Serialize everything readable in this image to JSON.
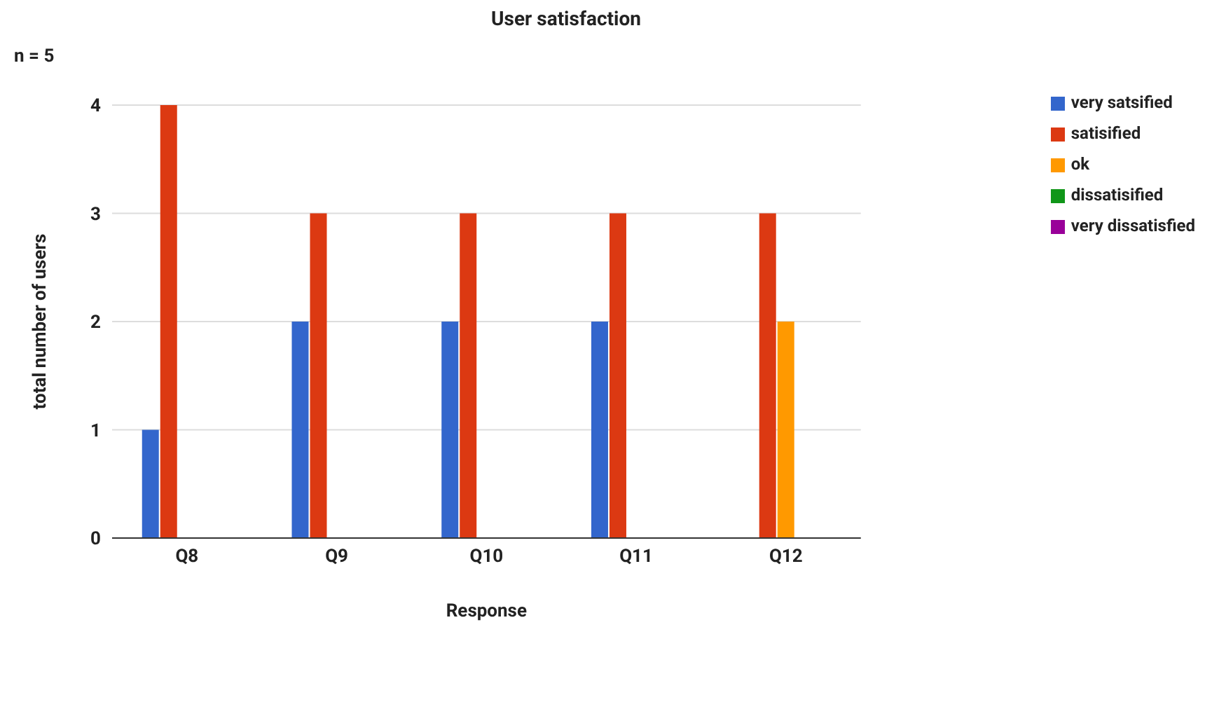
{
  "chart_data": {
    "type": "bar",
    "title": "User satisfaction",
    "xlabel": "Response",
    "ylabel": "total number of users",
    "annotations": [
      "n = 5"
    ],
    "categories": [
      "Q8",
      "Q9",
      "Q10",
      "Q11",
      "Q12"
    ],
    "series": [
      {
        "name": "very satsified",
        "color": "#3366cc",
        "values": [
          1,
          2,
          2,
          2,
          0
        ]
      },
      {
        "name": "satisified",
        "color": "#dc3912",
        "values": [
          4,
          3,
          3,
          3,
          3
        ]
      },
      {
        "name": "ok",
        "color": "#ff9900",
        "values": [
          0,
          0,
          0,
          0,
          2
        ]
      },
      {
        "name": "dissatisified",
        "color": "#109618",
        "values": [
          0,
          0,
          0,
          0,
          0
        ]
      },
      {
        "name": "very dissatisfied",
        "color": "#990099",
        "values": [
          0,
          0,
          0,
          0,
          0
        ]
      }
    ],
    "ylim": [
      0,
      4
    ],
    "yticks": [
      0,
      1,
      2,
      3,
      4
    ],
    "grid": "y",
    "legend": "right"
  }
}
